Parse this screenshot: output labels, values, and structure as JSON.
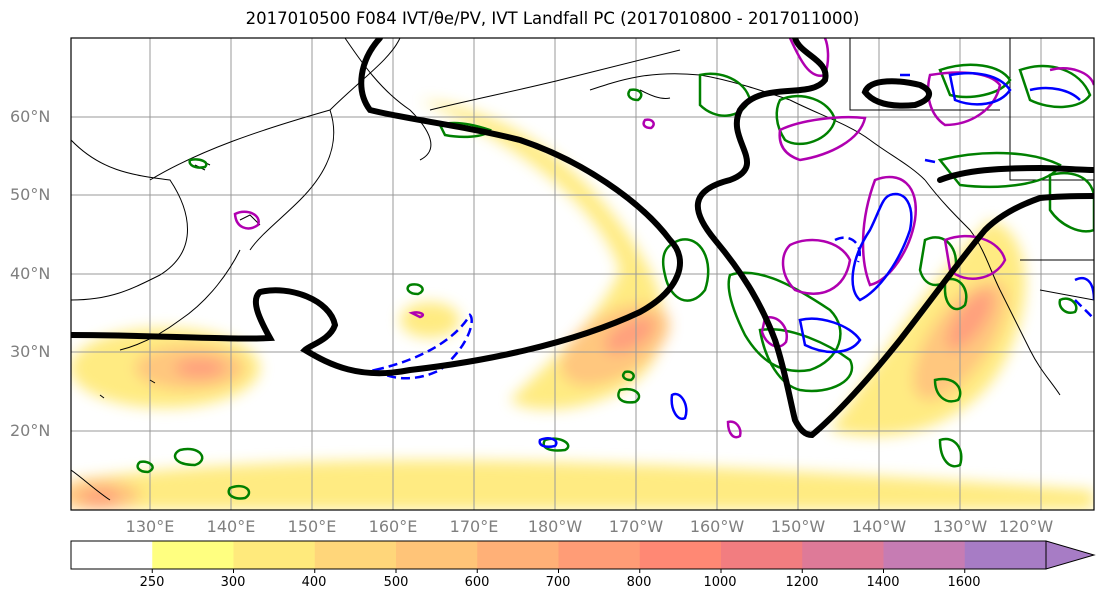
{
  "title": "2017010500 F084 IVT/θe/PV, IVT Landfall PC (2017010800 - 2017011000)",
  "latitude_labels": [
    "60°N",
    "50°N",
    "40°N",
    "30°N",
    "20°N"
  ],
  "longitude_labels": [
    "130°E",
    "140°E",
    "150°E",
    "160°E",
    "170°E",
    "180°W",
    "170°W",
    "160°W",
    "150°W",
    "140°W",
    "130°W",
    "120°W"
  ],
  "colorbar": {
    "ticks": [
      "250",
      "300",
      "400",
      "500",
      "600",
      "700",
      "800",
      "1000",
      "1200",
      "1400",
      "1600"
    ],
    "colors": [
      "#ffffff",
      "#ffff80",
      "#ffea7c",
      "#ffd67a",
      "#ffc478",
      "#ffb077",
      "#ff9c76",
      "#ff8874",
      "#f27d80",
      "#de7a98",
      "#c67cb3",
      "#a77cc5"
    ]
  },
  "colors": {
    "ivt_contour": "#000000",
    "theta_e": "#008000",
    "pv_positive": "#b000b0",
    "pv_negative": "#0000ff",
    "coastline": "#000000",
    "gridline": "#999999"
  }
}
